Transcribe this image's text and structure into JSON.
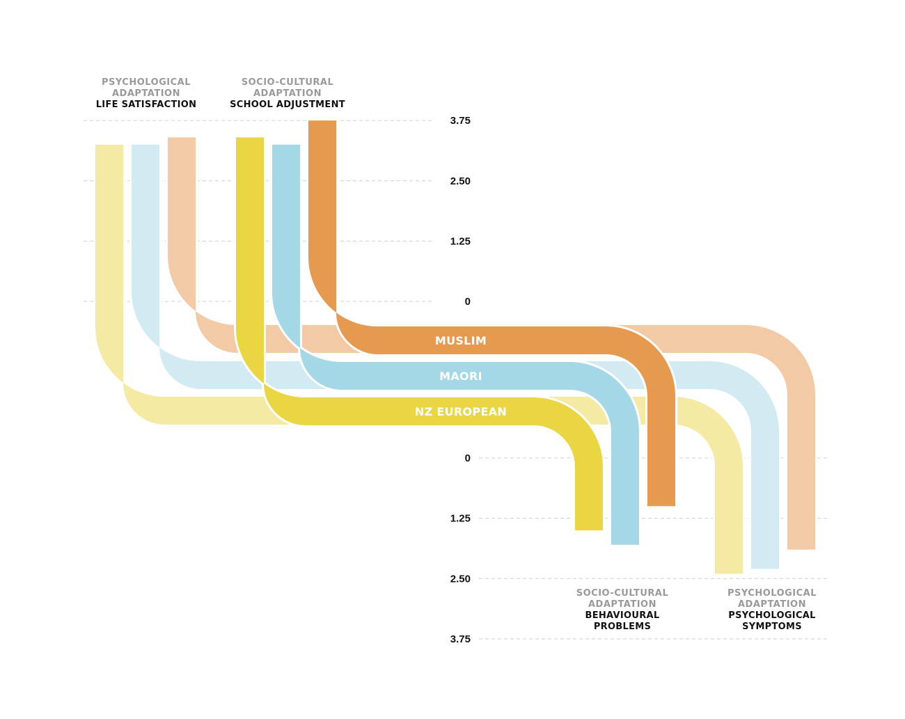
{
  "chart_data": {
    "type": "area",
    "tick_labels_top": [
      "3.75",
      "2.50",
      "1.25",
      "0"
    ],
    "tick_labels_bottom": [
      "0",
      "1.25",
      "2.50",
      "3.75"
    ],
    "top_scale": [
      0,
      3.75
    ],
    "bottom_scale": [
      0,
      3.75
    ],
    "groups_top": [
      {
        "category": [
          "PSYCHOLOGICAL",
          "ADAPTATION"
        ],
        "name": [
          "LIFE SATISFACTION"
        ]
      },
      {
        "category": [
          "SOCIO-CULTURAL",
          "ADAPTATION"
        ],
        "name": [
          "SCHOOL ADJUSTMENT"
        ]
      }
    ],
    "groups_bottom": [
      {
        "category": [
          "SOCIO-CULTURAL",
          "ADAPTATION"
        ],
        "name": [
          "BEHAVIOURAL",
          "PROBLEMS"
        ]
      },
      {
        "category": [
          "PSYCHOLOGICAL",
          "ADAPTATION"
        ],
        "name": [
          "PSYCHOLOGICAL",
          "SYMPTOMS"
        ]
      }
    ],
    "series": [
      {
        "name": "MUSLIM",
        "color_light": "#f2cba6",
        "color_strong": "#e69a4f",
        "life_satisfaction": 3.4,
        "school_adjustment": 3.75,
        "behavioural_problems": 1.0,
        "psychological_symptoms": 1.9
      },
      {
        "name": "MAORI",
        "color_light": "#d2ebf2",
        "color_strong": "#a5d8e6",
        "life_satisfaction": 3.25,
        "school_adjustment": 3.25,
        "behavioural_problems": 1.8,
        "psychological_symptoms": 2.3
      },
      {
        "name": "NZ EUROPEAN",
        "color_light": "#f4eaa4",
        "color_strong": "#ead643",
        "life_satisfaction": 3.25,
        "school_adjustment": 3.4,
        "behavioural_problems": 1.5,
        "psychological_symptoms": 2.4
      }
    ]
  }
}
